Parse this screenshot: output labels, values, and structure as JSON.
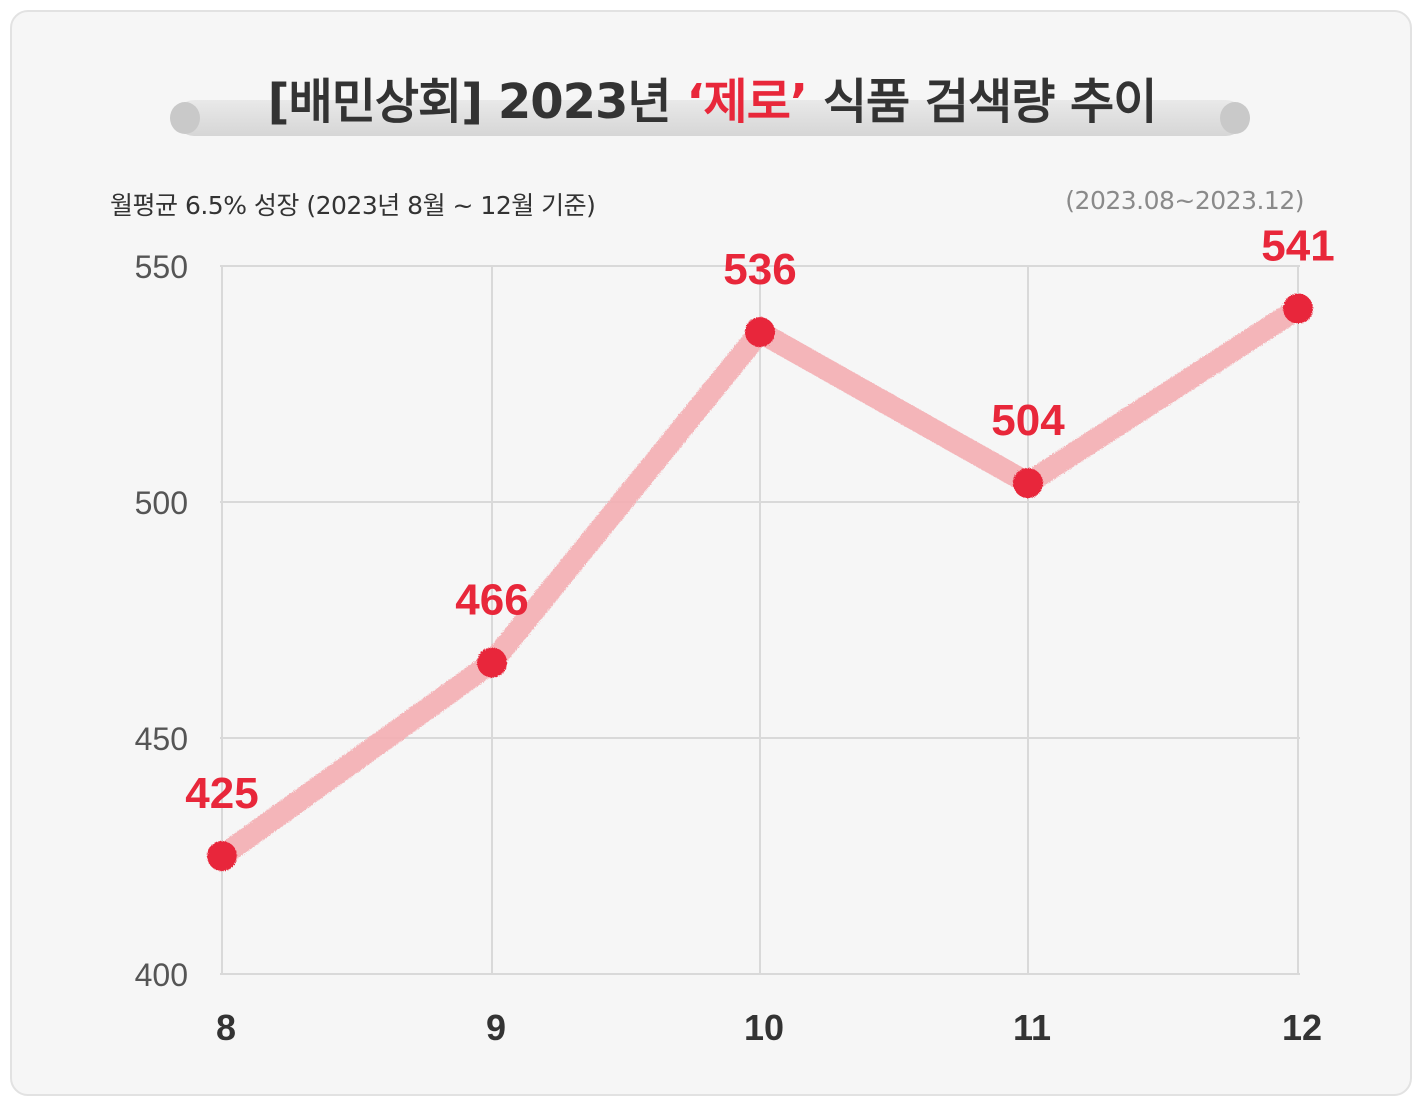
{
  "title": {
    "prefix": "[배민상회] 2023년 ",
    "highlight": "‘제로’",
    "suffix": " 식품 검색량 추이"
  },
  "subtitle": "월평균 6.5% 성장 (2023년 8월 ~ 12월 기준)",
  "period": "(2023.08~2023.12)",
  "colors": {
    "accent": "#e8273a",
    "line": "#f4aeb3",
    "grid": "#d9d9d9",
    "text": "#333333",
    "muted": "#8a8a8a"
  },
  "chart_data": {
    "type": "line",
    "categories": [
      "8",
      "9",
      "10",
      "11",
      "12"
    ],
    "series": [
      {
        "values": [
          425,
          466,
          536,
          504,
          541
        ]
      }
    ],
    "ylim": [
      400,
      550
    ],
    "yticks": [
      400,
      450,
      500,
      550
    ],
    "grid": true,
    "data_labels": true
  }
}
